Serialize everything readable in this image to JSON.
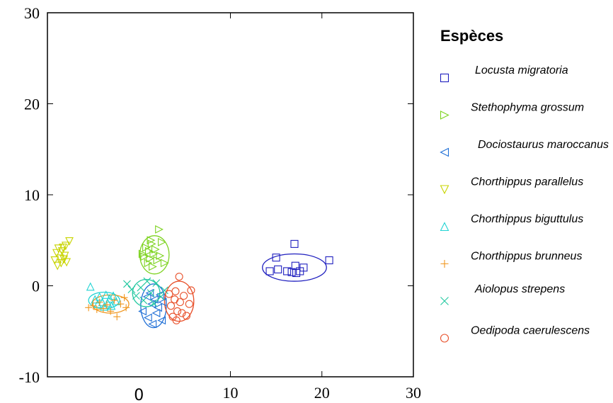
{
  "chart_data": {
    "type": "scatter",
    "xlim": [
      -10,
      30
    ],
    "ylim": [
      -10,
      30
    ],
    "x_ticks": [
      {
        "value": 0,
        "label": "0"
      },
      {
        "value": 10,
        "label": "10"
      },
      {
        "value": 20,
        "label": "20"
      },
      {
        "value": 30,
        "label": "30"
      }
    ],
    "y_ticks": [
      {
        "value": -10,
        "label": "-10"
      },
      {
        "value": 0,
        "label": "0"
      },
      {
        "value": 10,
        "label": "10"
      },
      {
        "value": 20,
        "label": "20"
      },
      {
        "value": 30,
        "label": "30"
      }
    ],
    "grid": false,
    "legend": {
      "title": "Espèces",
      "position": "right"
    },
    "series": [
      {
        "name": "Locusta migratoria",
        "marker": "square",
        "color": "#1f1fbf",
        "points": [
          [
            14.3,
            1.6
          ],
          [
            15.0,
            3.1
          ],
          [
            15.2,
            1.8
          ],
          [
            16.2,
            1.6
          ],
          [
            16.7,
            1.5
          ],
          [
            17.0,
            4.6
          ],
          [
            17.1,
            2.2
          ],
          [
            17.2,
            1.4
          ],
          [
            17.6,
            1.6
          ],
          [
            18.0,
            2.0
          ],
          [
            20.8,
            2.8
          ]
        ],
        "ellipse": {
          "cx": 17.0,
          "cy": 2.0,
          "rx": 3.5,
          "ry": 1.5
        }
      },
      {
        "name": "Stethophyma grossum",
        "marker": "triangle-right",
        "color": "#7ed321",
        "points": [
          [
            0.4,
            3.5
          ],
          [
            0.6,
            3.2
          ],
          [
            0.8,
            4.2
          ],
          [
            1.0,
            2.5
          ],
          [
            1.1,
            3.8
          ],
          [
            1.2,
            3.0
          ],
          [
            1.4,
            4.6
          ],
          [
            1.5,
            2.1
          ],
          [
            1.6,
            3.5
          ],
          [
            1.8,
            4.0
          ],
          [
            2.0,
            2.8
          ],
          [
            2.2,
            6.2
          ],
          [
            2.3,
            3.3
          ],
          [
            2.5,
            4.8
          ],
          [
            2.8,
            2.5
          ],
          [
            1.3,
            5.0
          ]
        ],
        "ellipse": {
          "cx": 1.7,
          "cy": 3.4,
          "rx": 1.6,
          "ry": 2.1
        }
      },
      {
        "name": "Dociostaurus maroccanus",
        "marker": "triangle-left",
        "color": "#1f6fd6",
        "points": [
          [
            0.4,
            -2.8
          ],
          [
            0.9,
            -1.2
          ],
          [
            1.0,
            -3.5
          ],
          [
            1.2,
            -0.8
          ],
          [
            1.4,
            -2.0
          ],
          [
            1.5,
            -4.2
          ],
          [
            1.7,
            -1.5
          ],
          [
            1.9,
            -3.0
          ],
          [
            2.1,
            -2.4
          ],
          [
            2.3,
            -1.0
          ],
          [
            2.5,
            -3.8
          ],
          [
            2.6,
            -1.8
          ]
        ],
        "ellipse": {
          "cx": 1.6,
          "cy": -2.2,
          "rx": 1.4,
          "ry": 2.4
        }
      },
      {
        "name": "Chorthippus parallelus",
        "marker": "triangle-down",
        "color": "#c8d400",
        "points": [
          [
            -9.2,
            2.8
          ],
          [
            -9.0,
            3.6
          ],
          [
            -8.9,
            2.2
          ],
          [
            -8.8,
            4.1
          ],
          [
            -8.6,
            3.0
          ],
          [
            -8.5,
            2.5
          ],
          [
            -8.4,
            3.8
          ],
          [
            -8.3,
            4.2
          ],
          [
            -8.2,
            2.9
          ],
          [
            -8.1,
            3.3
          ],
          [
            -8.0,
            4.4
          ],
          [
            -7.9,
            2.6
          ],
          [
            -7.6,
            4.9
          ]
        ]
      },
      {
        "name": "Chorthippus biguttulus",
        "marker": "triangle-up",
        "color": "#22d4d4",
        "points": [
          [
            -5.3,
            -0.1
          ],
          [
            -4.8,
            -1.5
          ],
          [
            -4.5,
            -2.0
          ],
          [
            -4.3,
            -1.2
          ],
          [
            -4.0,
            -1.8
          ],
          [
            -3.8,
            -2.3
          ],
          [
            -3.6,
            -1.0
          ],
          [
            -3.4,
            -1.9
          ],
          [
            -3.2,
            -1.4
          ],
          [
            -3.0,
            -2.2
          ],
          [
            -2.8,
            -1.1
          ],
          [
            -2.5,
            -1.7
          ]
        ],
        "ellipse": {
          "cx": -3.8,
          "cy": -1.6,
          "rx": 1.7,
          "ry": 0.9
        }
      },
      {
        "name": "Chorthippus brunneus",
        "marker": "plus",
        "color": "#f0961e",
        "points": [
          [
            -5.5,
            -2.4
          ],
          [
            -5.0,
            -2.2
          ],
          [
            -4.6,
            -2.6
          ],
          [
            -4.3,
            -1.8
          ],
          [
            -3.9,
            -2.5
          ],
          [
            -3.5,
            -2.1
          ],
          [
            -3.1,
            -2.8
          ],
          [
            -2.7,
            -1.6
          ],
          [
            -2.4,
            -3.4
          ],
          [
            -2.0,
            -2.0
          ],
          [
            -1.6,
            -1.3
          ],
          [
            -1.4,
            -2.4
          ]
        ],
        "ellipse": {
          "cx": -3.1,
          "cy": -2.0,
          "rx": 2.0,
          "ry": 1.0
        }
      },
      {
        "name": "Aiolopus strepens",
        "marker": "x",
        "color": "#22c8a0",
        "points": [
          [
            -1.3,
            0.2
          ],
          [
            -0.8,
            -0.4
          ],
          [
            -0.3,
            -1.1
          ],
          [
            0.2,
            -0.2
          ],
          [
            0.5,
            -1.6
          ],
          [
            0.9,
            0.5
          ],
          [
            1.3,
            -0.8
          ],
          [
            1.6,
            -1.9
          ],
          [
            1.9,
            0.3
          ],
          [
            2.4,
            -1.2
          ],
          [
            2.8,
            -0.5
          ]
        ],
        "ellipse": {
          "cx": 0.8,
          "cy": -0.8,
          "rx": 1.5,
          "ry": 1.5
        }
      },
      {
        "name": "Oedipoda caerulescens",
        "marker": "circle",
        "color": "#e8502a",
        "points": [
          [
            3.3,
            -0.9
          ],
          [
            3.5,
            -2.2
          ],
          [
            3.7,
            -3.4
          ],
          [
            3.9,
            -1.5
          ],
          [
            4.0,
            -0.6
          ],
          [
            4.2,
            -2.8
          ],
          [
            4.4,
            1.0
          ],
          [
            4.5,
            -1.8
          ],
          [
            4.7,
            -3.0
          ],
          [
            4.9,
            -1.1
          ],
          [
            5.2,
            -3.3
          ],
          [
            5.5,
            -2.0
          ],
          [
            5.7,
            -0.5
          ],
          [
            4.1,
            -3.8
          ]
        ],
        "ellipse": {
          "cx": 4.4,
          "cy": -1.7,
          "rx": 1.6,
          "ry": 2.2
        }
      }
    ]
  }
}
